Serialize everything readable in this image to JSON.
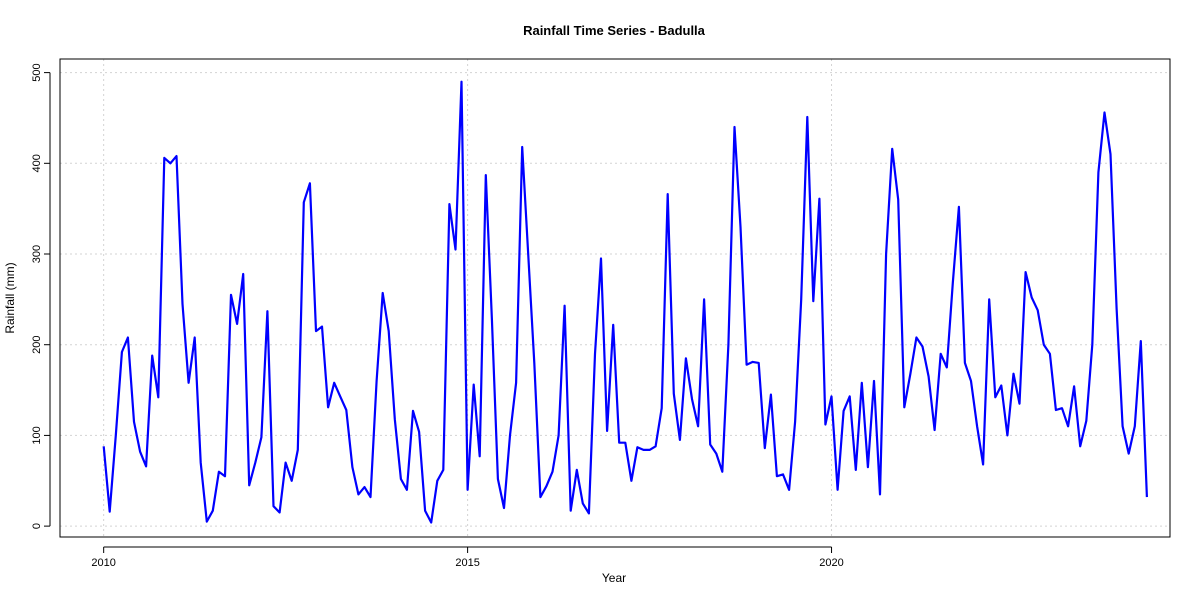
{
  "chart_data": {
    "type": "line",
    "title": "Rainfall Time Series - Badulla",
    "xlabel": "Year",
    "ylabel": "Rainfall (mm)",
    "xlim": [
      2009.4,
      2024.65
    ],
    "ylim": [
      -12,
      515
    ],
    "x_ticks": [
      2010,
      2015,
      2020
    ],
    "y_ticks": [
      0,
      100,
      200,
      300,
      400,
      500
    ],
    "grid": true,
    "line_color": "#0000ff",
    "series": [
      {
        "x_start": 2010.0,
        "x_step": 0.08333,
        "values": [
          88,
          16,
          100,
          192,
          208,
          115,
          82,
          66,
          188,
          142,
          406,
          400,
          408,
          245,
          158,
          208,
          70,
          5,
          17,
          60,
          55,
          255,
          223,
          278,
          45,
          70,
          98,
          237,
          22,
          15,
          70,
          50,
          84,
          357,
          378,
          215,
          220,
          131,
          158,
          143,
          128,
          65,
          35,
          43,
          32,
          160,
          257,
          215,
          118,
          52,
          40,
          127,
          104,
          17,
          4,
          50,
          62,
          355,
          305,
          490,
          40,
          156,
          77,
          387,
          228,
          52,
          20,
          100,
          158,
          418,
          300,
          180,
          32,
          44,
          60,
          100,
          243,
          17,
          62,
          25,
          14,
          190,
          295,
          105,
          222,
          92,
          92,
          50,
          87,
          84,
          84,
          88,
          130,
          366,
          146,
          95,
          185,
          140,
          110,
          250,
          90,
          80,
          60,
          200,
          440,
          330,
          178,
          181,
          180,
          86,
          145,
          55,
          57,
          40,
          115,
          250,
          451,
          248,
          361,
          112,
          143,
          40,
          127,
          143,
          62,
          158,
          65,
          160,
          35,
          300,
          416,
          360,
          131,
          168,
          208,
          198,
          165,
          106,
          190,
          175,
          268,
          352,
          180,
          160,
          110,
          68,
          250,
          142,
          155,
          100,
          168,
          135,
          280,
          252,
          238,
          200,
          190,
          128,
          130,
          110,
          154,
          88,
          116,
          200,
          390,
          456,
          410,
          240,
          110,
          80,
          110,
          204,
          32
        ]
      }
    ]
  }
}
